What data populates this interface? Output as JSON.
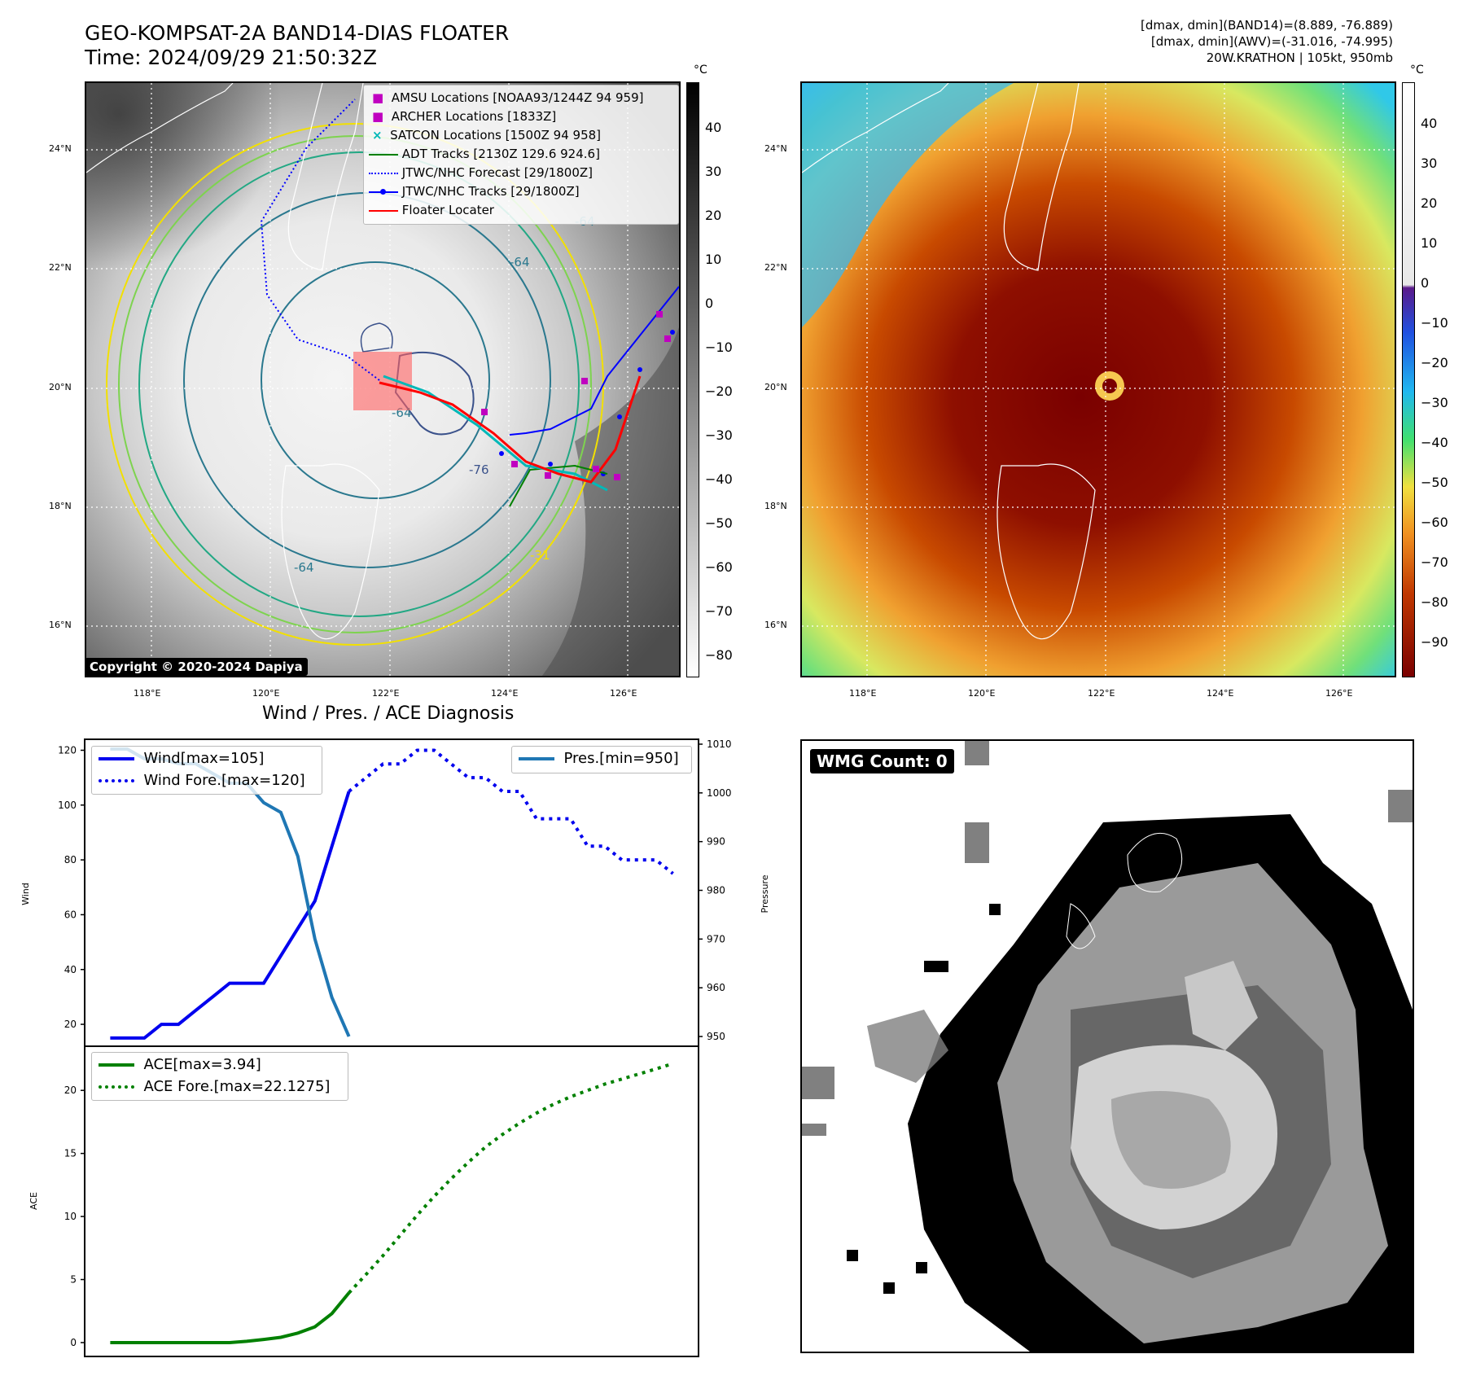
{
  "header": {
    "title_line1": "GEO-KOMPSAT-2A BAND14-DIAS FLOATER",
    "title_line2": "Time: 2024/09/29 21:50:32Z",
    "info_line1": "[dmax, dmin](BAND14)=(8.889, -76.889)",
    "info_line2": "[dmax, dmin](AWV)=(-31.016, -74.995)",
    "info_line3": "20W.KRATHON | 105kt, 950mb"
  },
  "map": {
    "lat_labels": [
      "24°N",
      "22°N",
      "20°N",
      "18°N",
      "16°N"
    ],
    "lon_labels": [
      "118°E",
      "120°E",
      "122°E",
      "124°E",
      "126°E"
    ],
    "copyright": "Copyright © 2020-2024 Dapiya",
    "contour_labels": [
      "-64",
      "-64",
      "-64",
      "-76",
      "-31",
      "-64"
    ],
    "legend": [
      {
        "label": "AMSU Locations [NOAA93/1244Z 94 959]",
        "color": "#c000c0",
        "marker": "square"
      },
      {
        "label": "ARCHER Locations [1833Z]",
        "color": "#c000c0",
        "marker": "square"
      },
      {
        "label": "SATCON Locations [1500Z 94 958]",
        "color": "#00b8b8",
        "marker": "x"
      },
      {
        "label": "ADT Tracks [2130Z 129.6 924.6]",
        "color": "#008000",
        "marker": "line"
      },
      {
        "label": "JTWC/NHC Forecast [29/1800Z]",
        "color": "#0000ff",
        "marker": "dotted"
      },
      {
        "label": "JTWC/NHC Tracks [29/1800Z]",
        "color": "#0000ff",
        "marker": "line-dot"
      },
      {
        "label": "Floater Locater",
        "color": "#ff0000",
        "marker": "line"
      }
    ]
  },
  "colorbar_ir": {
    "unit": "°C",
    "ticks": [
      "40",
      "30",
      "20",
      "10",
      "0",
      "−10",
      "−20",
      "−30",
      "−40",
      "−50",
      "−60",
      "−70",
      "−80"
    ]
  },
  "colorbar_wv": {
    "unit": "°C",
    "ticks": [
      "40",
      "30",
      "20",
      "10",
      "0",
      "−10",
      "−20",
      "−30",
      "−40",
      "−50",
      "−60",
      "−70",
      "−80",
      "−90"
    ]
  },
  "diag": {
    "title": "Wind / Pres. / ACE Diagnosis",
    "wind_axis_label": "Wind",
    "pressure_axis_label": "Pressure",
    "ace_axis_label": "ACE",
    "wind_ticks": [
      "120",
      "100",
      "80",
      "60",
      "40",
      "20"
    ],
    "pressure_ticks": [
      "1010",
      "1000",
      "990",
      "980",
      "970",
      "960",
      "950"
    ],
    "ace_ticks": [
      "20",
      "15",
      "10",
      "5",
      "0"
    ],
    "legend_wind": "Wind[max=105]",
    "legend_wind_fore": "Wind Fore.[max=120]",
    "legend_pres": "Pres.[min=950]",
    "legend_ace": "ACE[max=3.94]",
    "legend_ace_fore": "ACE Fore.[max=22.1275]"
  },
  "wmg": {
    "badge": "WMG Count: 0"
  },
  "colors": {
    "wind": "#0000ee",
    "pressure": "#1f77b4",
    "ace": "#008000",
    "floater": "#ff0000"
  },
  "chart_data": [
    {
      "type": "line",
      "title": "Wind / Pres. / ACE Diagnosis",
      "ylabel": "Wind",
      "ylim": [
        12,
        124
      ],
      "series": [
        {
          "name": "Wind[max=105]",
          "x": [
            0,
            1,
            2,
            3,
            4,
            5,
            6,
            7,
            8,
            9,
            10,
            11,
            12,
            13,
            14
          ],
          "values": [
            15,
            15,
            15,
            20,
            20,
            25,
            30,
            35,
            35,
            35,
            45,
            55,
            65,
            85,
            105
          ]
        },
        {
          "name": "Wind Fore.[max=120]",
          "x": [
            14,
            15,
            16,
            17,
            18,
            19,
            20,
            21,
            22,
            23,
            24,
            25,
            26,
            27,
            28,
            29,
            30,
            31,
            32,
            33
          ],
          "values": [
            105,
            110,
            115,
            115,
            120,
            120,
            115,
            110,
            110,
            105,
            105,
            95,
            95,
            95,
            85,
            85,
            80,
            80,
            80,
            75
          ]
        }
      ]
    },
    {
      "type": "line",
      "ylabel": "Pressure",
      "ylim": [
        948,
        1011
      ],
      "series": [
        {
          "name": "Pres.[min=950]",
          "x": [
            0,
            1,
            2,
            3,
            4,
            5,
            6,
            7,
            8,
            9,
            10,
            11,
            12,
            13,
            14
          ],
          "values": [
            1009,
            1009,
            1007,
            1007,
            1006,
            1006,
            1004,
            1002,
            1002,
            998,
            996,
            987,
            970,
            958,
            950
          ]
        }
      ]
    },
    {
      "type": "line",
      "ylabel": "ACE",
      "ylim": [
        -1.1,
        23.5
      ],
      "series": [
        {
          "name": "ACE[max=3.94]",
          "x": [
            0,
            1,
            2,
            3,
            4,
            5,
            6,
            7,
            8,
            9,
            10,
            11,
            12,
            13,
            14
          ],
          "values": [
            0,
            0,
            0,
            0,
            0,
            0,
            0,
            0,
            0.1,
            0.25,
            0.42,
            0.75,
            1.25,
            2.3,
            3.94
          ]
        },
        {
          "name": "ACE Fore.[max=22.1275]",
          "x": [
            14,
            15,
            16,
            17,
            18,
            19,
            20,
            21,
            22,
            23,
            24,
            25,
            26,
            27,
            28,
            29,
            30,
            31,
            32,
            33
          ],
          "values": [
            3.94,
            5.4,
            6.9,
            8.5,
            10.1,
            11.6,
            13.0,
            14.3,
            15.5,
            16.5,
            17.4,
            18.2,
            18.9,
            19.5,
            20.0,
            20.5,
            20.9,
            21.3,
            21.7,
            22.1275
          ]
        }
      ]
    }
  ]
}
